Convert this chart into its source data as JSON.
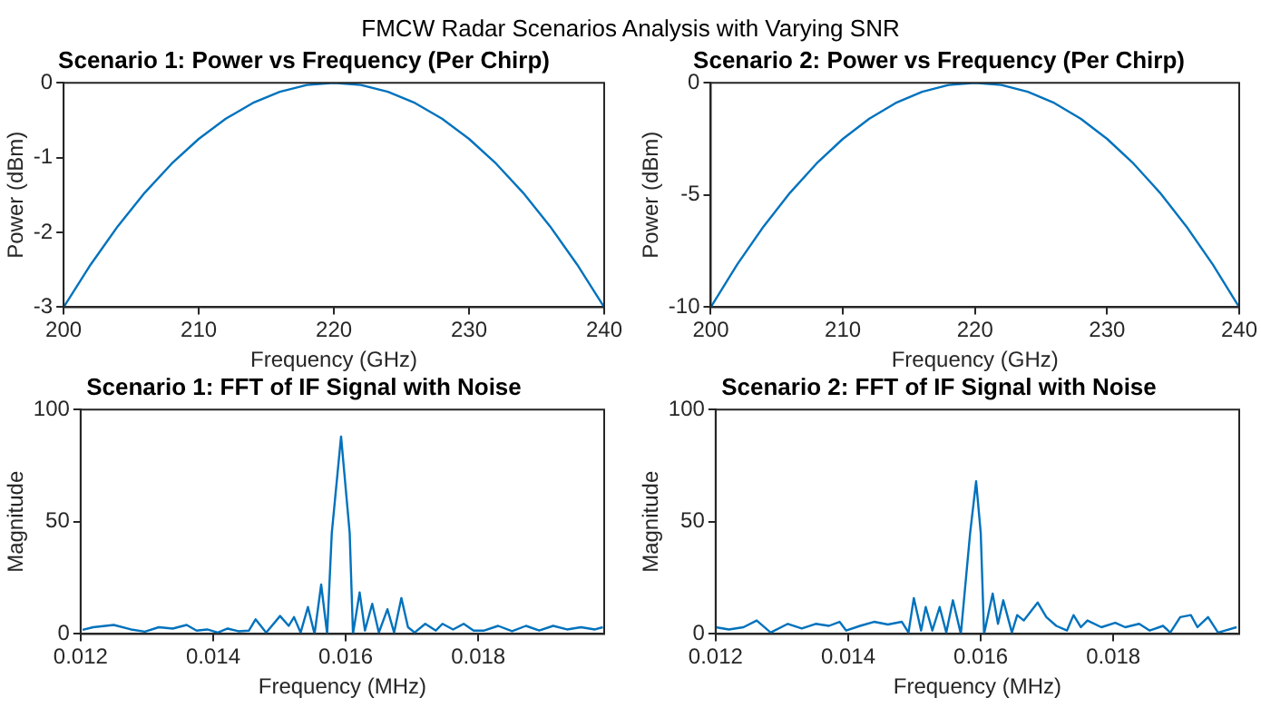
{
  "chart_data": [
    {
      "type": "line",
      "title": "Scenario 1: Power vs Frequency (Per Chirp)",
      "xlabel": "Frequency (GHz)",
      "ylabel": "Power (dBm)",
      "annotations": [
        "FMCW Radar Scenarios Analysis with Varying SNR"
      ],
      "xlim": [
        200,
        240
      ],
      "xticks": [
        200,
        210,
        220,
        230,
        240
      ],
      "ylim": [
        -3,
        0
      ],
      "yticks": [
        -3,
        -2,
        -1,
        0
      ],
      "grid": false,
      "legend": false,
      "marker": "none",
      "line_style": "solid",
      "series": [
        {
          "color": "#0072bd",
          "x": [
            200,
            202,
            204,
            206,
            208,
            210,
            212,
            214,
            216,
            218,
            220,
            222,
            224,
            226,
            228,
            230,
            232,
            234,
            236,
            238,
            240
          ],
          "values": [
            -3,
            -2.43,
            -1.92,
            -1.47,
            -1.08,
            -0.75,
            -0.48,
            -0.27,
            -0.12,
            -0.03,
            0,
            -0.03,
            -0.12,
            -0.27,
            -0.48,
            -0.75,
            -1.08,
            -1.47,
            -1.92,
            -2.43,
            -3
          ]
        }
      ]
    },
    {
      "type": "line",
      "title": "Scenario 2: Power vs Frequency (Per Chirp)",
      "xlabel": "Frequency (GHz)",
      "ylabel": "Power (dBm)",
      "xlim": [
        200,
        240
      ],
      "xticks": [
        200,
        210,
        220,
        230,
        240
      ],
      "ylim": [
        -10,
        0
      ],
      "yticks": [
        -10,
        -5,
        0
      ],
      "grid": false,
      "legend": false,
      "marker": "none",
      "line_style": "solid",
      "series": [
        {
          "color": "#0072bd",
          "x": [
            200,
            202,
            204,
            206,
            208,
            210,
            212,
            214,
            216,
            218,
            220,
            222,
            224,
            226,
            228,
            230,
            232,
            234,
            236,
            238,
            240
          ],
          "values": [
            -10,
            -8.1,
            -6.4,
            -4.9,
            -3.6,
            -2.5,
            -1.6,
            -0.9,
            -0.4,
            -0.1,
            0,
            -0.1,
            -0.4,
            -0.9,
            -1.6,
            -2.5,
            -3.6,
            -4.9,
            -6.4,
            -8.1,
            -10
          ]
        }
      ]
    },
    {
      "type": "line",
      "title": "Scenario 1: FFT of IF Signal with Noise",
      "xlabel": "Frequency (MHz)",
      "ylabel": "Magnitude",
      "xlim": [
        0.012,
        0.0199
      ],
      "xticks": [
        0.012,
        0.014,
        0.016,
        0.018
      ],
      "ylim": [
        0,
        100
      ],
      "yticks": [
        0,
        50,
        100
      ],
      "grid": false,
      "legend": false,
      "marker": "none",
      "line_style": "solid",
      "series": [
        {
          "color": "#0072bd",
          "x": [
            0.01203,
            0.01219,
            0.0125,
            0.01276,
            0.01297,
            0.01318,
            0.01339,
            0.0136,
            0.01375,
            0.01391,
            0.01407,
            0.01422,
            0.01438,
            0.01454,
            0.01464,
            0.0148,
            0.01501,
            0.01514,
            0.01522,
            0.01532,
            0.01543,
            0.01553,
            0.01563,
            0.01572,
            0.01579,
            0.01593,
            0.01606,
            0.01611,
            0.01621,
            0.01629,
            0.0164,
            0.0165,
            0.01663,
            0.01673,
            0.01684,
            0.01694,
            0.01704,
            0.0172,
            0.01736,
            0.01746,
            0.01762,
            0.01778,
            0.01793,
            0.01809,
            0.0183,
            0.01851,
            0.01872,
            0.01892,
            0.01913,
            0.01934,
            0.01955,
            0.01976,
            0.01988
          ],
          "values": [
            1.8,
            3,
            4,
            2,
            1,
            3,
            2.4,
            4,
            1.5,
            2,
            0.6,
            2.4,
            1.2,
            1.5,
            6.5,
            0.6,
            8,
            3.6,
            7.5,
            0.6,
            12,
            0,
            22,
            0,
            45,
            88,
            45,
            0,
            18.5,
            1.5,
            13.4,
            0.6,
            11,
            0.6,
            16,
            3,
            0.6,
            4.5,
            1.5,
            4.5,
            2,
            4.5,
            1.5,
            1.5,
            3.6,
            1.2,
            3.6,
            1.5,
            3.6,
            2,
            3,
            2,
            3
          ]
        }
      ]
    },
    {
      "type": "line",
      "title": "Scenario 2: FFT of IF Signal with Noise",
      "xlabel": "Frequency (MHz)",
      "ylabel": "Magnitude",
      "xlim": [
        0.012,
        0.0199
      ],
      "xticks": [
        0.012,
        0.014,
        0.016,
        0.018
      ],
      "ylim": [
        0,
        100
      ],
      "yticks": [
        0,
        50,
        100
      ],
      "grid": false,
      "legend": false,
      "marker": "none",
      "line_style": "solid",
      "series": [
        {
          "color": "#0072bd",
          "x": [
            0.012,
            0.0122,
            0.01242,
            0.01262,
            0.01283,
            0.01309,
            0.0133,
            0.01351,
            0.01371,
            0.01387,
            0.01397,
            0.01418,
            0.01439,
            0.0146,
            0.01481,
            0.01491,
            0.01499,
            0.0151,
            0.01517,
            0.01527,
            0.01538,
            0.01548,
            0.01558,
            0.0157,
            0.01584,
            0.01593,
            0.016,
            0.01605,
            0.01618,
            0.01626,
            0.01634,
            0.01647,
            0.01655,
            0.01665,
            0.01686,
            0.01699,
            0.01714,
            0.0173,
            0.0174,
            0.01751,
            0.01761,
            0.01782,
            0.01803,
            0.01818,
            0.01839,
            0.01855,
            0.01875,
            0.01886,
            0.01901,
            0.01917,
            0.01927,
            0.01943,
            0.01958,
            0.01969,
            0.01986
          ],
          "values": [
            3,
            2,
            3,
            6,
            0.6,
            4.5,
            2.4,
            4.5,
            3.6,
            5.4,
            1.5,
            3.6,
            5.4,
            4.2,
            5.4,
            0.6,
            16,
            1.5,
            12,
            1.5,
            12,
            0.6,
            15,
            0,
            45,
            68,
            45,
            0,
            18,
            4.5,
            15,
            0.6,
            8.4,
            6,
            14,
            7.5,
            3.6,
            1.5,
            8.4,
            3,
            6,
            3,
            5,
            3,
            4.5,
            1.5,
            3.6,
            0.6,
            7.5,
            8.4,
            3,
            7.5,
            0.6,
            1.5,
            3
          ]
        }
      ]
    }
  ]
}
